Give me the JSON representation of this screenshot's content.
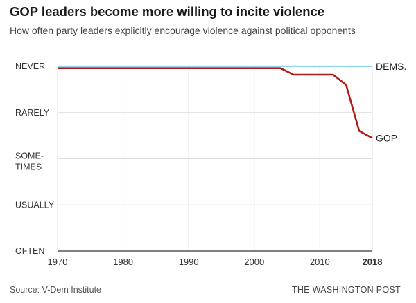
{
  "header": {
    "title": "GOP leaders become more willing to incite violence",
    "subtitle": "How often party leaders explicitly encourage violence against political opponents"
  },
  "footer": {
    "source": "Source: V-Dem Institute",
    "credit": "THE WASHINGTON POST"
  },
  "chart_data": {
    "type": "line",
    "title": "GOP leaders become more willing to incite violence",
    "subtitle": "How often party leaders explicitly encourage violence against political opponents",
    "xlabel": "",
    "ylabel": "",
    "xlim": [
      1970,
      2018
    ],
    "ylim": [
      0,
      4
    ],
    "x_ticks": [
      {
        "value": 1970,
        "label": "1970",
        "bold": false
      },
      {
        "value": 1980,
        "label": "1980",
        "bold": false
      },
      {
        "value": 1990,
        "label": "1990",
        "bold": false
      },
      {
        "value": 2000,
        "label": "2000",
        "bold": false
      },
      {
        "value": 2010,
        "label": "2010",
        "bold": false
      },
      {
        "value": 2018,
        "label": "2018",
        "bold": true
      }
    ],
    "y_ticks": [
      {
        "value": 4,
        "lines": [
          "NEVER"
        ]
      },
      {
        "value": 3,
        "lines": [
          "RARELY"
        ]
      },
      {
        "value": 2,
        "lines": [
          "SOME-",
          "TIMES"
        ]
      },
      {
        "value": 1,
        "lines": [
          "USUALLY"
        ]
      },
      {
        "value": 0,
        "lines": [
          "OFTEN"
        ]
      }
    ],
    "grid": true,
    "series": [
      {
        "name": "DEMS.",
        "color": "#8fd3ef",
        "x": [
          1970,
          2018
        ],
        "y": [
          4.0,
          4.0
        ]
      },
      {
        "name": "GOP",
        "color": "#b01a12",
        "x": [
          1970,
          2004,
          2006,
          2012,
          2014,
          2016,
          2018
        ],
        "y": [
          3.96,
          3.96,
          3.82,
          3.82,
          3.6,
          2.6,
          2.45
        ]
      }
    ]
  }
}
